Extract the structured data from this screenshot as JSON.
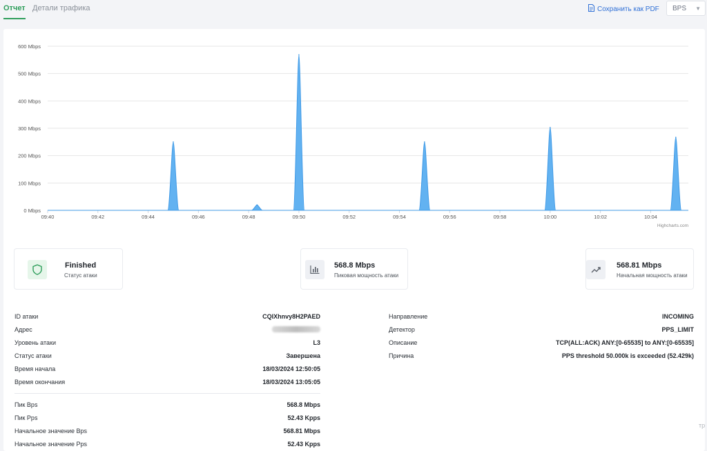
{
  "tabs": {
    "report": "Отчет",
    "traffic": "Детали трафика"
  },
  "toolbar": {
    "save_pdf": "Сохранить как PDF",
    "unit_select": "BPS"
  },
  "chart_data": {
    "type": "area",
    "title": "",
    "xlabel": "",
    "ylabel": "",
    "x_ticks": [
      "09:40",
      "09:42",
      "09:44",
      "09:46",
      "09:48",
      "09:50",
      "09:52",
      "09:54",
      "09:56",
      "09:58",
      "10:00",
      "10:02",
      "10:04"
    ],
    "y_ticks": [
      "0 Mbps",
      "100 Mbps",
      "200 Mbps",
      "300 Mbps",
      "400 Mbps",
      "500 Mbps",
      "600 Mbps"
    ],
    "ylim": [
      0,
      600
    ],
    "xlim_minutes": [
      0,
      25.5
    ],
    "color": "#5aaef0",
    "credits": "Highcharts.com",
    "series": [
      {
        "values_mbps": [
          {
            "t": "09:45:00",
            "y": 250
          },
          {
            "t": "09:48:20",
            "y": 20
          },
          {
            "t": "09:50:00",
            "y": 568.8
          },
          {
            "t": "09:55:00",
            "y": 250
          },
          {
            "t": "10:00:00",
            "y": 303
          },
          {
            "t": "10:05:00",
            "y": 267
          }
        ]
      }
    ]
  },
  "stats": [
    {
      "value": "Finished",
      "label": "Статус атаки",
      "icon": "shield-icon",
      "accent": "#2e9e5b"
    },
    {
      "value": "568.8 Mbps",
      "label": "Пиковая мощность атаки",
      "icon": "bar-chart-icon"
    },
    {
      "value": "568.81 Mbps",
      "label": "Начальная мощность атаки",
      "icon": "trend-up-icon"
    }
  ],
  "details_left": [
    {
      "key": "ID атаки",
      "value": "CQIXhnvy8H2PAED"
    },
    {
      "key": "Адрес",
      "value": ""
    },
    {
      "key": "Уровень атаки",
      "value": "L3"
    },
    {
      "key": "Статус атаки",
      "value": "Завершена"
    },
    {
      "key": "Время начала",
      "value": "18/03/2024 12:50:05"
    },
    {
      "key": "Время окончания",
      "value": "18/03/2024 13:05:05"
    }
  ],
  "details_metrics": [
    {
      "key": "Пик Bps",
      "value": "568.8 Mbps"
    },
    {
      "key": "Пик Pps",
      "value": "52.43 Kpps"
    },
    {
      "key": "Начальное значение Bps",
      "value": "568.81 Mbps"
    },
    {
      "key": "Начальное значение Pps",
      "value": "52.43 Kpps"
    }
  ],
  "details_right": [
    {
      "key": "Направление",
      "value": "INCOMING"
    },
    {
      "key": "Детектор",
      "value": "PPS_LIMIT"
    },
    {
      "key": "Описание",
      "value": "TCP(ALL:ACK) ANY:[0-65535] to ANY:[0-65535]"
    },
    {
      "key": "Причина",
      "value": "PPS threshold 50.000k is exceeded (52.429k)"
    }
  ],
  "edge_text": "тр"
}
